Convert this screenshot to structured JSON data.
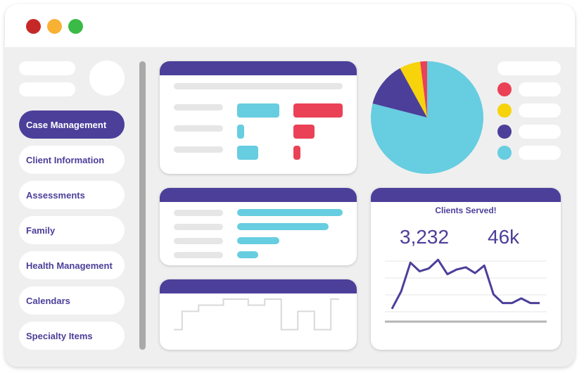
{
  "window": {
    "traffic_lights": [
      {
        "name": "close",
        "color": "#c62828"
      },
      {
        "name": "minimize",
        "color": "#f8b133"
      },
      {
        "name": "maximize",
        "color": "#3aba46"
      }
    ]
  },
  "sidebar": {
    "items": [
      {
        "label": "Case Management",
        "active": true
      },
      {
        "label": "Client Information",
        "active": false
      },
      {
        "label": "Assessments",
        "active": false
      },
      {
        "label": "Family",
        "active": false
      },
      {
        "label": "Health Management",
        "active": false
      },
      {
        "label": "Calendars",
        "active": false
      },
      {
        "label": "Specialty Items",
        "active": false
      }
    ]
  },
  "colors": {
    "purple": "#4b3f9a",
    "teal": "#67cde0",
    "red": "#ea4157",
    "yellow": "#f6d30b",
    "grey_line": "#e6e6e6"
  },
  "pie_chart": {
    "type": "pie",
    "slices": [
      {
        "value": 2,
        "color": "#ea4157"
      },
      {
        "value": 6,
        "color": "#f6d30b"
      },
      {
        "value": 13,
        "color": "#4b3f9a"
      },
      {
        "value": 79,
        "color": "#67cde0"
      }
    ]
  },
  "clients_served": {
    "title": "Clients Served!",
    "stat_1": "3,232",
    "stat_2": "46k",
    "series": [
      10,
      40,
      90,
      75,
      80,
      95,
      70,
      78,
      82,
      72,
      85,
      35,
      20,
      20,
      28,
      20,
      20
    ]
  },
  "stepped_line": {
    "values": [
      1,
      4,
      4,
      5,
      5,
      5,
      6,
      6,
      6,
      5,
      5,
      6,
      6,
      1,
      1,
      4,
      4,
      1,
      1,
      6,
      6
    ]
  }
}
